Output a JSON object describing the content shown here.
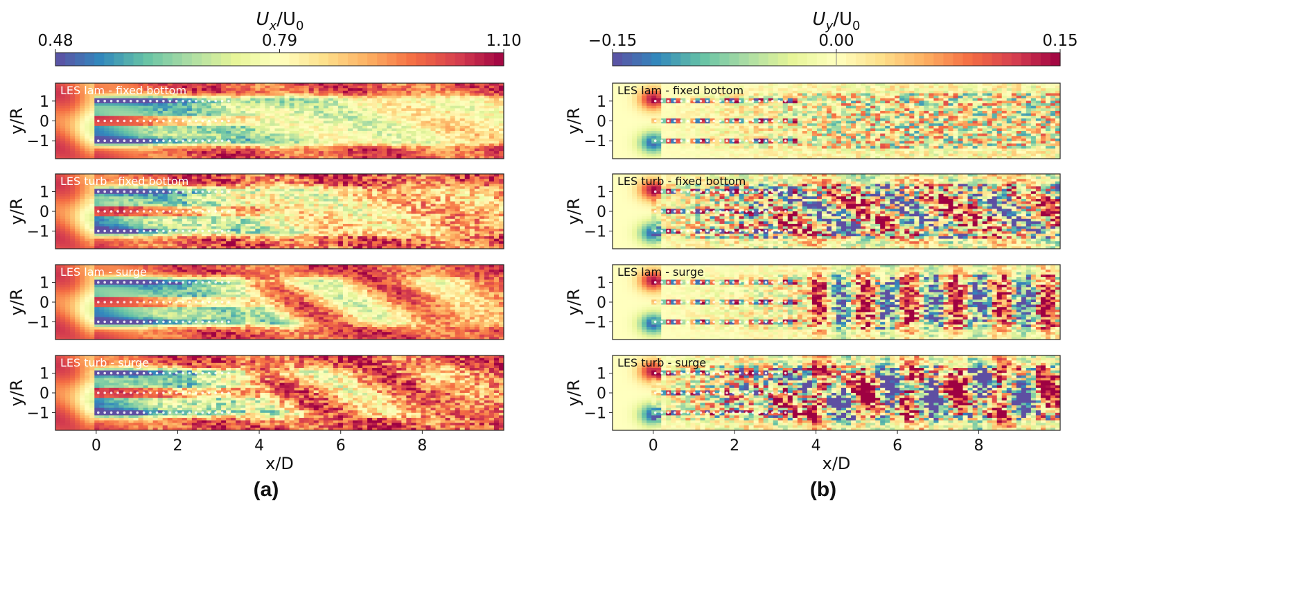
{
  "chart_data": [
    {
      "panel_label": "(a)",
      "type": "heatmap",
      "colorbar": {
        "label_main": "U",
        "label_sub1": "x",
        "label_mid": "/U",
        "label_sub2": "0",
        "ticks": [
          "0.48",
          "0.79",
          "1.10"
        ],
        "range": [
          0.48,
          1.1
        ],
        "colormap": "Spectral_r",
        "colors": [
          "#5e4fa2",
          "#3288bd",
          "#66c2a5",
          "#abdda4",
          "#e6f598",
          "#ffffbf",
          "#fee08b",
          "#fdae61",
          "#f46d43",
          "#d53e4f",
          "#9e0142"
        ]
      },
      "subplots": [
        {
          "title": "LES lam - fixed bottom",
          "case": "lam-fixed"
        },
        {
          "title": "LES turb - fixed bottom",
          "case": "turb-fixed"
        },
        {
          "title": "LES lam - surge",
          "case": "lam-surge"
        },
        {
          "title": "LES turb - surge",
          "case": "turb-surge"
        }
      ],
      "xlabel": "x/D",
      "ylabel": "y/R",
      "xticks": [
        "0",
        "2",
        "4",
        "6",
        "8"
      ],
      "yticks": [
        "1",
        "0",
        "−1"
      ],
      "xlim": [
        -1,
        10
      ],
      "ylim": [
        -1.9,
        1.9
      ]
    },
    {
      "panel_label": "(b)",
      "type": "heatmap",
      "colorbar": {
        "label_main": "U",
        "label_sub1": "y",
        "label_mid": "/U",
        "label_sub2": "0",
        "ticks": [
          "−0.15",
          "0.00",
          "0.15"
        ],
        "range": [
          -0.15,
          0.15
        ],
        "colormap": "Spectral_r",
        "colors": [
          "#5e4fa2",
          "#3288bd",
          "#66c2a5",
          "#abdda4",
          "#e6f598",
          "#ffffbf",
          "#fee08b",
          "#fdae61",
          "#f46d43",
          "#d53e4f",
          "#9e0142"
        ]
      },
      "subplots": [
        {
          "title": "LES lam - fixed bottom",
          "case": "lam-fixed"
        },
        {
          "title": "LES turb - fixed bottom",
          "case": "turb-fixed"
        },
        {
          "title": "LES lam - surge",
          "case": "lam-surge"
        },
        {
          "title": "LES turb - surge",
          "case": "turb-surge"
        }
      ],
      "xlabel": "x/D",
      "ylabel": "y/R",
      "xticks": [
        "0",
        "2",
        "4",
        "6",
        "8"
      ],
      "yticks": [
        "1",
        "0",
        "−1"
      ],
      "xlim": [
        -1,
        10
      ],
      "ylim": [
        -1.9,
        1.9
      ]
    }
  ]
}
